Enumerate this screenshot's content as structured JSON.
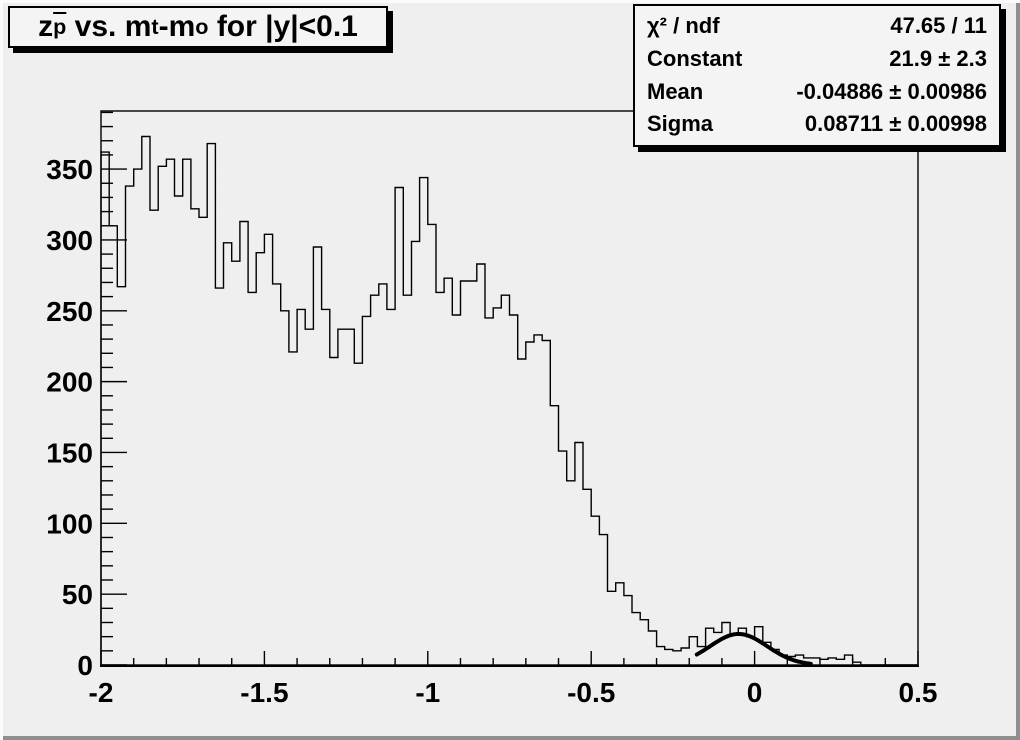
{
  "title_box": {
    "parts": [
      {
        "text": "z",
        "style": "normal"
      },
      {
        "text": "p",
        "style": "sub-bar"
      },
      {
        "text": " vs. m",
        "style": "normal"
      },
      {
        "text": "t",
        "style": "sub"
      },
      {
        "text": "-m",
        "style": "normal"
      },
      {
        "text": "o",
        "style": "sub"
      },
      {
        "text": " for |y|<0.1",
        "style": "normal"
      }
    ]
  },
  "stats_box": {
    "rows": [
      {
        "label": "χ² / ndf",
        "value": "47.65 / 11"
      },
      {
        "label": "Constant",
        "value": "21.9 ± 2.3"
      },
      {
        "label": "Mean",
        "value": "-0.04886 ± 0.00986"
      },
      {
        "label": "Sigma",
        "value": "0.08711 ± 0.00998"
      }
    ]
  },
  "chart_data": {
    "type": "bar",
    "subtype": "step-histogram",
    "title": "z_p̄ vs. m_t-m_o for |y|<0.1",
    "xlabel": "",
    "ylabel": "",
    "xlim": [
      -2,
      0.5
    ],
    "ylim": [
      0,
      391
    ],
    "grid": false,
    "legend_position": "none",
    "bin_start": -2,
    "bin_width": 0.025,
    "values": [
      362,
      310,
      267,
      338,
      350,
      373,
      321,
      352,
      357,
      331,
      357,
      322,
      316,
      368,
      266,
      298,
      285,
      313,
      263,
      291,
      304,
      269,
      250,
      221,
      251,
      237,
      295,
      251,
      217,
      237,
      237,
      213,
      246,
      261,
      269,
      251,
      337,
      261,
      299,
      344,
      311,
      263,
      273,
      247,
      271,
      271,
      283,
      245,
      252,
      261,
      247,
      216,
      228,
      233,
      229,
      183,
      151,
      130,
      157,
      124,
      105,
      92,
      52,
      58,
      49,
      37,
      32,
      24,
      13,
      11,
      10,
      12,
      20,
      13,
      26,
      23,
      30,
      21,
      26,
      20,
      27,
      16,
      11,
      7,
      6,
      7,
      5,
      5,
      4,
      5,
      4,
      7,
      2,
      0,
      0,
      0,
      0,
      0,
      0,
      0
    ],
    "x_ticks": [
      {
        "v": -2,
        "label": "-2"
      },
      {
        "v": -1.5,
        "label": "-1.5"
      },
      {
        "v": -1,
        "label": "-1"
      },
      {
        "v": -0.5,
        "label": "-0.5"
      },
      {
        "v": 0,
        "label": "0"
      },
      {
        "v": 0.5,
        "label": "0.5"
      }
    ],
    "x_minor_step": 0.1,
    "y_ticks": [
      {
        "v": 0,
        "label": "0"
      },
      {
        "v": 50,
        "label": "50"
      },
      {
        "v": 100,
        "label": "100"
      },
      {
        "v": 150,
        "label": "150"
      },
      {
        "v": 200,
        "label": "200"
      },
      {
        "v": 250,
        "label": "250"
      },
      {
        "v": 300,
        "label": "300"
      },
      {
        "v": 350,
        "label": "350"
      }
    ],
    "y_minor_step": 10,
    "fit": {
      "type": "gaussian",
      "constant": 21.9,
      "mean": -0.04886,
      "sigma": 0.08711,
      "draw_range": [
        -0.177,
        0.172
      ]
    },
    "colors": {
      "histogram_line": "#000000",
      "fit_line": "#000000",
      "frame_line": "#000000",
      "background": "#efefef",
      "pave_background": "#f4f4f4"
    }
  }
}
